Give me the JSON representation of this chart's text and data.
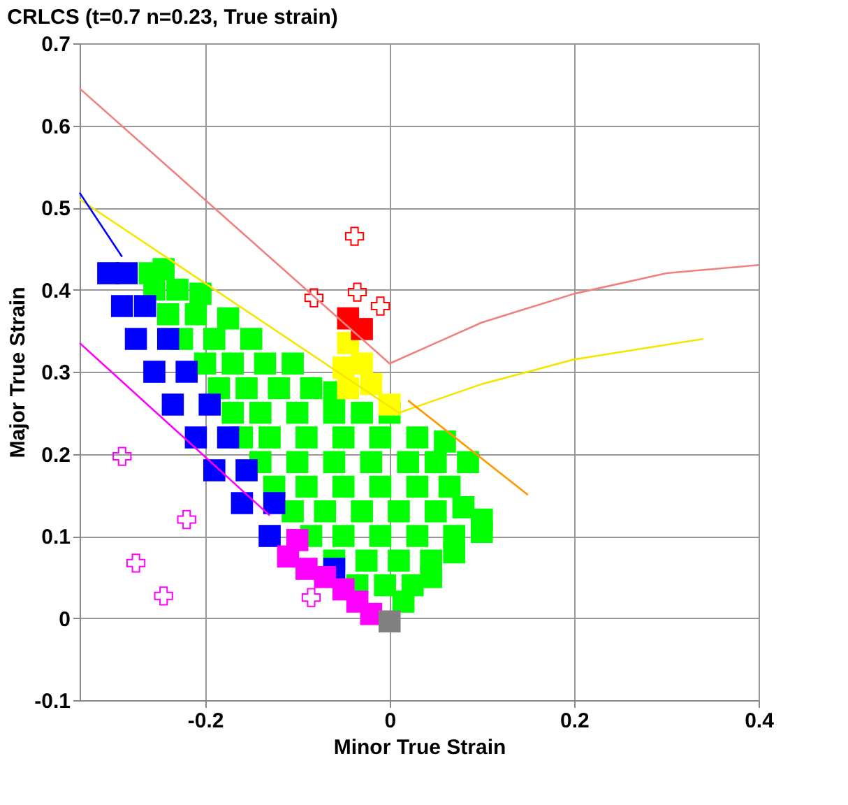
{
  "chart_data": {
    "type": "scatter",
    "title": "CRLCS (t=0.7 n=0.23, True strain)",
    "xlabel": "Minor True Strain",
    "ylabel": "Major True Strain",
    "xlim": [
      -0.336,
      0.4
    ],
    "ylim": [
      -0.1,
      0.7
    ],
    "xticks": [
      -0.2,
      0,
      0.2,
      0.4
    ],
    "yticks": [
      -0.1,
      0,
      0.1,
      0.2,
      0.3,
      0.4,
      0.5,
      0.6,
      0.7
    ],
    "grid": true,
    "series": [
      {
        "marker": "square",
        "color": "#00ff00",
        "x": [
          -0.26,
          -0.245,
          -0.255,
          -0.23,
          -0.205,
          -0.24,
          -0.21,
          -0.175,
          -0.225,
          -0.19,
          -0.15,
          -0.2,
          -0.17,
          -0.135,
          -0.105,
          -0.185,
          -0.155,
          -0.12,
          -0.085,
          -0.06,
          -0.17,
          -0.14,
          -0.1,
          -0.06,
          -0.03,
          0.0,
          -0.16,
          -0.13,
          -0.09,
          -0.05,
          -0.01,
          0.03,
          0.06,
          -0.14,
          -0.1,
          -0.06,
          -0.02,
          0.02,
          0.05,
          0.085,
          -0.125,
          -0.09,
          -0.05,
          -0.01,
          0.03,
          0.065,
          -0.105,
          -0.07,
          -0.03,
          0.01,
          0.05,
          0.08,
          0.1,
          -0.085,
          -0.05,
          -0.01,
          0.03,
          0.07,
          0.1,
          -0.06,
          -0.025,
          0.01,
          0.045,
          0.07,
          -0.035,
          -0.005,
          0.025,
          0.045,
          0.015
        ],
        "values": [
          0.42,
          0.425,
          0.4,
          0.4,
          0.395,
          0.37,
          0.37,
          0.365,
          0.34,
          0.34,
          0.34,
          0.31,
          0.31,
          0.31,
          0.31,
          0.28,
          0.28,
          0.28,
          0.28,
          0.275,
          0.25,
          0.25,
          0.25,
          0.25,
          0.25,
          0.25,
          0.22,
          0.22,
          0.22,
          0.22,
          0.22,
          0.22,
          0.215,
          0.19,
          0.19,
          0.19,
          0.19,
          0.19,
          0.19,
          0.19,
          0.16,
          0.16,
          0.16,
          0.16,
          0.16,
          0.16,
          0.13,
          0.13,
          0.13,
          0.13,
          0.13,
          0.135,
          0.12,
          0.1,
          0.1,
          0.1,
          0.1,
          0.1,
          0.105,
          0.07,
          0.07,
          0.07,
          0.07,
          0.08,
          0.04,
          0.04,
          0.04,
          0.05,
          0.02
        ]
      },
      {
        "marker": "square",
        "color": "#0000ff",
        "x": [
          -0.305,
          -0.285,
          -0.29,
          -0.265,
          -0.275,
          -0.24,
          -0.255,
          -0.22,
          -0.235,
          -0.195,
          -0.21,
          -0.175,
          -0.19,
          -0.155,
          -0.16,
          -0.125,
          -0.13,
          -0.06
        ],
        "values": [
          0.42,
          0.42,
          0.38,
          0.38,
          0.34,
          0.34,
          0.3,
          0.3,
          0.26,
          0.26,
          0.22,
          0.22,
          0.18,
          0.18,
          0.14,
          0.14,
          0.1,
          0.06
        ]
      },
      {
        "marker": "square",
        "color": "#ffff00",
        "x": [
          -0.045,
          -0.05,
          -0.03,
          -0.045,
          -0.02,
          0.0
        ],
        "values": [
          0.335,
          0.305,
          0.31,
          0.28,
          0.285,
          0.26
        ]
      },
      {
        "marker": "square",
        "color": "#ff0000",
        "x": [
          -0.045,
          -0.03
        ],
        "values": [
          0.365,
          0.352
        ]
      },
      {
        "marker": "square",
        "color": "#ff00ff",
        "x": [
          -0.11,
          -0.1,
          -0.09,
          -0.07,
          -0.05,
          -0.035,
          -0.02
        ],
        "values": [
          0.075,
          0.095,
          0.06,
          0.05,
          0.035,
          0.02,
          0.005
        ]
      },
      {
        "marker": "square",
        "color": "#808080",
        "x": [
          0.0
        ],
        "values": [
          -0.004
        ]
      },
      {
        "marker": "cross",
        "color": "#ff0000",
        "x": [
          -0.082,
          -0.038,
          -0.035,
          -0.01
        ],
        "values": [
          0.39,
          0.465,
          0.397,
          0.38
        ]
      },
      {
        "marker": "cross",
        "color": "#ff00ff",
        "x": [
          -0.29,
          -0.275,
          -0.245,
          -0.22,
          -0.085
        ],
        "values": [
          0.197,
          0.067,
          0.027,
          0.12,
          0.025
        ]
      },
      {
        "type": "line",
        "color": "#f08080",
        "x": [
          -0.336,
          0,
          0.05,
          0.1,
          0.2,
          0.3,
          0.4
        ],
        "values": [
          0.645,
          0.31,
          0.335,
          0.36,
          0.395,
          0.42,
          0.43
        ]
      },
      {
        "type": "line",
        "color": "#f5e600",
        "x": [
          -0.336,
          0.01,
          0.1,
          0.2,
          0.34
        ],
        "values": [
          0.51,
          0.25,
          0.285,
          0.315,
          0.34
        ]
      },
      {
        "type": "line",
        "color": "#ff9900",
        "x": [
          0.02,
          0.15
        ],
        "values": [
          0.265,
          0.15
        ]
      },
      {
        "type": "line",
        "color": "#0000ff",
        "x": [
          -0.336,
          -0.29
        ],
        "values": [
          0.518,
          0.44
        ]
      },
      {
        "type": "line",
        "color": "#ff00ff",
        "x": [
          -0.336,
          -0.13
        ],
        "values": [
          0.335,
          0.125
        ]
      }
    ]
  }
}
